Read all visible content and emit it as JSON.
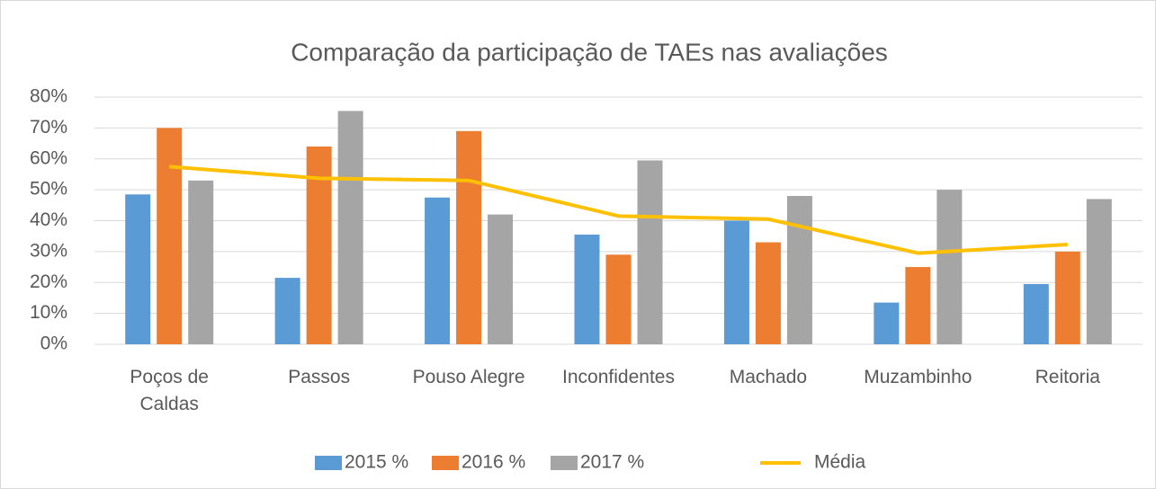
{
  "chart_data": {
    "type": "bar",
    "title": "Comparação da participação de TAEs nas avaliações",
    "categories": [
      "Poços de Caldas",
      "Passos",
      "Pouso Alegre",
      "Inconfidentes",
      "Machado",
      "Muzambinho",
      "Reitoria"
    ],
    "series": [
      {
        "name": "2015 %",
        "color": "#5b9bd5",
        "values": [
          48.5,
          21.5,
          47.5,
          35.5,
          40,
          13.5,
          19.5
        ]
      },
      {
        "name": "2016 %",
        "color": "#ed7d31",
        "values": [
          70,
          64,
          69,
          29,
          33,
          25,
          30
        ]
      },
      {
        "name": "2017 %",
        "color": "#a5a5a5",
        "values": [
          53,
          75.5,
          42,
          59.5,
          48,
          50,
          47
        ]
      },
      {
        "name": "Média",
        "color": "#ffc000",
        "type": "line",
        "values": [
          57.5,
          53.7,
          53,
          41.5,
          40.5,
          29.5,
          32.3
        ]
      }
    ],
    "ylim": [
      0,
      80
    ],
    "yticks": [
      {
        "value": 0,
        "label": "0%"
      },
      {
        "value": 10,
        "label": "10%"
      },
      {
        "value": 20,
        "label": "20%"
      },
      {
        "value": 30,
        "label": "30%"
      },
      {
        "value": 40,
        "label": "40%"
      },
      {
        "value": 50,
        "label": "50%"
      },
      {
        "value": 60,
        "label": "60%"
      },
      {
        "value": 70,
        "label": "70%"
      },
      {
        "value": 80,
        "label": "80%"
      }
    ],
    "grid": true,
    "legend": "bottom"
  }
}
